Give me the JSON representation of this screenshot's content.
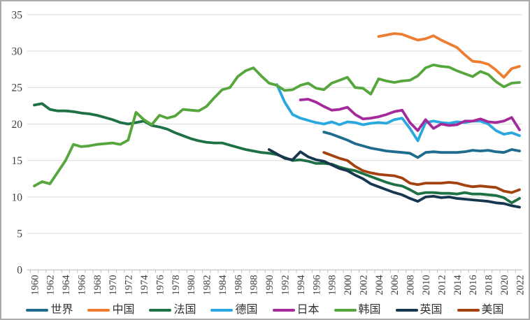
{
  "chart_data": {
    "type": "line",
    "title": "",
    "xlabel": "",
    "ylabel": "",
    "background": "#FFFFFF",
    "border_color": "#ABABAB",
    "grid_color": "#D9D9D9",
    "axis_color": "#BFBFBF",
    "label_color": "#404040",
    "grid": "horizontal-only",
    "legend_position": "bottom",
    "y_axis": {
      "min": 0,
      "max": 35,
      "step": 5,
      "tick_labels": [
        "0",
        "5",
        "10",
        "15",
        "20",
        "25",
        "30",
        "35"
      ]
    },
    "x_axis": {
      "start_year": 1960,
      "end_year": 2022,
      "label_step": 2,
      "tick_labels": [
        "1960",
        "1962",
        "1964",
        "1966",
        "1968",
        "1970",
        "1972",
        "1974",
        "1976",
        "1978",
        "1980",
        "1982",
        "1984",
        "1986",
        "1988",
        "1990",
        "1992",
        "1994",
        "1996",
        "1998",
        "2000",
        "2002",
        "2004",
        "2006",
        "2008",
        "2010",
        "2012",
        "2014",
        "2016",
        "2018",
        "2020",
        "2022"
      ]
    },
    "series": [
      {
        "id": "world",
        "label": "世界",
        "color": "#1F6C8E",
        "start_year": 1997,
        "values": [
          18.9,
          18.6,
          18.2,
          17.8,
          17.3,
          17.0,
          16.7,
          16.5,
          16.3,
          16.2,
          16.1,
          16.0,
          15.4,
          16.1,
          16.2,
          16.1,
          16.1,
          16.1,
          16.2,
          16.4,
          16.3,
          16.4,
          16.2,
          16.1,
          16.5,
          16.3
        ]
      },
      {
        "id": "china",
        "label": "中国",
        "color": "#ED7D31",
        "start_year": 2004,
        "values": [
          32.0,
          32.2,
          32.4,
          32.3,
          31.9,
          31.5,
          31.7,
          32.1,
          31.5,
          31.0,
          30.5,
          29.5,
          28.6,
          28.5,
          28.2,
          27.4,
          26.4,
          27.6,
          27.9
        ]
      },
      {
        "id": "france",
        "label": "法国",
        "color": "#1E7145",
        "start_year": 1960,
        "values": [
          22.6,
          22.8,
          22.0,
          21.8,
          21.8,
          21.7,
          21.5,
          21.4,
          21.2,
          20.9,
          20.6,
          20.2,
          20.0,
          20.2,
          20.4,
          19.8,
          19.6,
          19.3,
          18.8,
          18.4,
          18.0,
          17.7,
          17.5,
          17.4,
          17.4,
          17.1,
          16.8,
          16.5,
          16.3,
          16.1,
          16.0,
          15.8,
          15.4,
          15.0,
          15.1,
          14.9,
          14.6,
          14.6,
          14.5,
          14.1,
          13.8,
          13.6,
          13.2,
          12.8,
          12.4,
          12.0,
          11.7,
          11.5,
          11.0,
          10.4,
          10.6,
          10.6,
          10.5,
          10.5,
          10.4,
          10.6,
          10.4,
          10.4,
          10.3,
          10.2,
          9.9,
          9.2,
          9.8
        ]
      },
      {
        "id": "germany",
        "label": "德国",
        "color": "#29A8DF",
        "start_year": 1991,
        "values": [
          25.4,
          23.0,
          21.3,
          20.8,
          20.5,
          20.2,
          20.0,
          20.3,
          19.9,
          20.3,
          20.2,
          19.9,
          20.1,
          20.2,
          20.1,
          20.6,
          20.8,
          19.4,
          17.7,
          20.2,
          20.4,
          20.2,
          20.1,
          20.3,
          20.2,
          20.4,
          20.4,
          20.0,
          19.1,
          18.6,
          18.8,
          18.4
        ]
      },
      {
        "id": "japan",
        "label": "日本",
        "color": "#A42A9C",
        "start_year": 1994,
        "values": [
          23.3,
          23.4,
          23.0,
          22.4,
          21.9,
          22.0,
          22.3,
          21.3,
          20.7,
          20.8,
          21.0,
          21.3,
          21.7,
          21.9,
          20.2,
          19.1,
          20.6,
          19.4,
          20.0,
          19.8,
          19.9,
          20.4,
          20.4,
          20.7,
          20.3,
          20.2,
          20.4,
          20.9,
          19.2
        ]
      },
      {
        "id": "korea",
        "label": "韩国",
        "color": "#55A63C",
        "start_year": 1960,
        "values": [
          11.5,
          12.1,
          11.8,
          13.4,
          15.0,
          17.2,
          16.9,
          17.0,
          17.2,
          17.3,
          17.4,
          17.2,
          17.8,
          21.6,
          20.6,
          19.9,
          21.2,
          20.8,
          21.1,
          22.0,
          21.9,
          21.8,
          22.4,
          23.6,
          24.7,
          25.0,
          26.5,
          27.3,
          27.7,
          26.6,
          25.6,
          25.3,
          24.6,
          24.7,
          25.3,
          25.6,
          24.9,
          24.7,
          25.6,
          26.0,
          26.4,
          25.0,
          24.9,
          24.1,
          26.2,
          25.9,
          25.7,
          25.9,
          26.0,
          26.6,
          27.7,
          28.1,
          27.9,
          27.8,
          27.3,
          26.9,
          26.5,
          27.2,
          26.8,
          25.8,
          25.1,
          25.6,
          25.7
        ]
      },
      {
        "id": "uk",
        "label": "英国",
        "color": "#17374F",
        "start_year": 1990,
        "values": [
          16.5,
          15.9,
          15.3,
          15.1,
          16.2,
          15.5,
          15.1,
          14.9,
          14.4,
          13.9,
          13.6,
          13.0,
          12.5,
          11.8,
          11.4,
          11.0,
          10.6,
          10.3,
          9.8,
          9.4,
          10.0,
          10.1,
          9.9,
          10.0,
          9.8,
          9.7,
          9.6,
          9.5,
          9.4,
          9.2,
          9.1,
          8.8,
          8.6
        ]
      },
      {
        "id": "usa",
        "label": "美国",
        "color": "#A3420F",
        "start_year": 1997,
        "values": [
          16.1,
          15.7,
          15.3,
          15.0,
          14.2,
          13.6,
          13.3,
          13.1,
          13.0,
          12.9,
          12.6,
          11.9,
          11.7,
          11.9,
          11.9,
          11.9,
          12.0,
          11.9,
          11.6,
          11.4,
          11.5,
          11.4,
          11.3,
          10.8,
          10.6,
          11.0
        ]
      }
    ]
  }
}
